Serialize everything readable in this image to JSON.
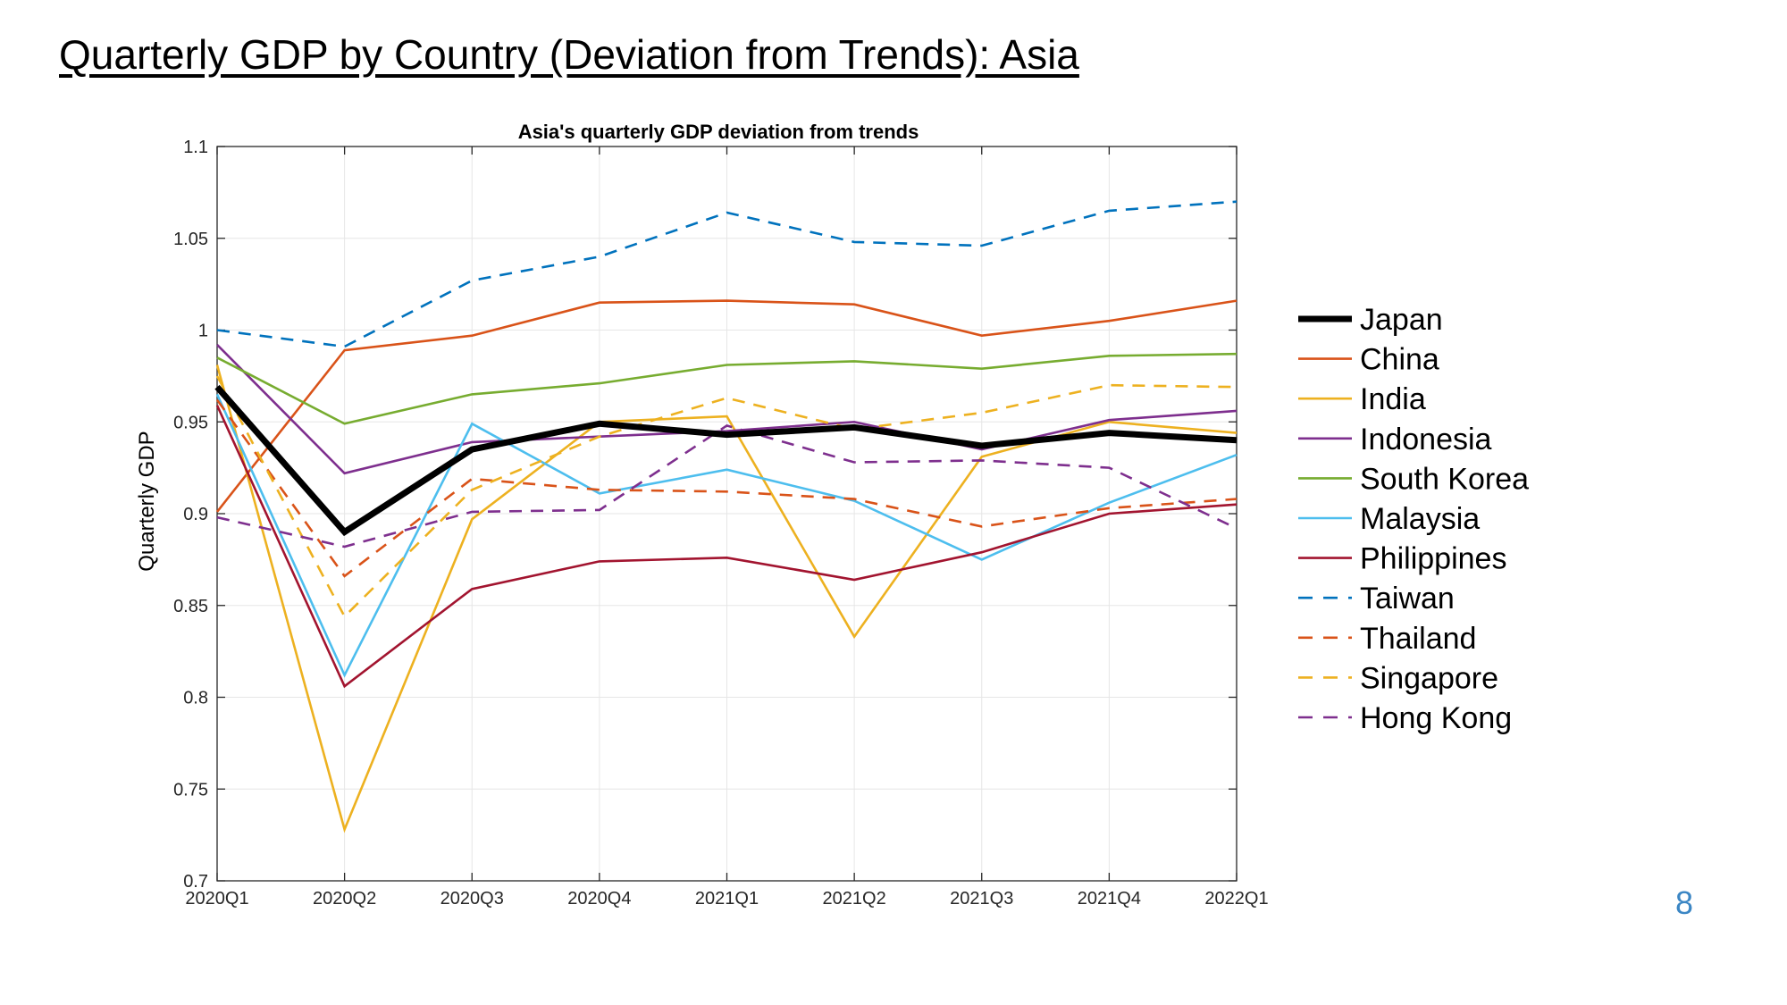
{
  "slide": {
    "title": "Quarterly GDP by Country (Deviation from Trends): Asia",
    "page_number": "8"
  },
  "chart_data": {
    "type": "line",
    "title": "Asia's quarterly GDP deviation from trends",
    "xlabel": "",
    "ylabel": "Quarterly GDP",
    "categories": [
      "2020Q1",
      "2020Q2",
      "2020Q3",
      "2020Q4",
      "2021Q1",
      "2021Q2",
      "2021Q3",
      "2021Q4",
      "2022Q1"
    ],
    "ylim": [
      0.7,
      1.1
    ],
    "yticks": [
      0.7,
      0.75,
      0.8,
      0.85,
      0.9,
      0.95,
      1,
      1.05,
      1.1
    ],
    "ytick_labels": [
      "0.7",
      "0.75",
      "0.8",
      "0.85",
      "0.9",
      "0.95",
      "1",
      "1.05",
      "1.1"
    ],
    "grid": true,
    "legend_position": "right",
    "series": [
      {
        "name": "Japan",
        "color": "#000000",
        "style": "solid-thick",
        "values": [
          0.969,
          0.89,
          0.935,
          0.949,
          0.943,
          0.947,
          0.937,
          0.944,
          0.94
        ]
      },
      {
        "name": "China",
        "color": "#d95319",
        "style": "solid",
        "values": [
          0.901,
          0.989,
          0.997,
          1.015,
          1.016,
          1.014,
          0.997,
          1.005,
          1.016
        ]
      },
      {
        "name": "India",
        "color": "#edb120",
        "style": "solid",
        "values": [
          0.981,
          0.728,
          0.897,
          0.95,
          0.953,
          0.833,
          0.931,
          0.95,
          0.944
        ]
      },
      {
        "name": "Indonesia",
        "color": "#7e2f8e",
        "style": "solid",
        "values": [
          0.992,
          0.922,
          0.939,
          0.942,
          0.945,
          0.95,
          0.935,
          0.951,
          0.956
        ]
      },
      {
        "name": "South Korea",
        "color": "#77ac30",
        "style": "solid",
        "values": [
          0.985,
          0.949,
          0.965,
          0.971,
          0.981,
          0.983,
          0.979,
          0.986,
          0.987
        ]
      },
      {
        "name": "Malaysia",
        "color": "#4dbeee",
        "style": "solid",
        "values": [
          0.965,
          0.812,
          0.949,
          0.911,
          0.924,
          0.907,
          0.875,
          0.906,
          0.932
        ]
      },
      {
        "name": "Philippines",
        "color": "#a2142f",
        "style": "solid",
        "values": [
          0.959,
          0.806,
          0.859,
          0.874,
          0.876,
          0.864,
          0.879,
          0.9,
          0.905
        ]
      },
      {
        "name": "Taiwan",
        "color": "#0072bd",
        "style": "dashed",
        "values": [
          1.0,
          0.991,
          1.027,
          1.04,
          1.064,
          1.048,
          1.046,
          1.065,
          1.07
        ]
      },
      {
        "name": "Thailand",
        "color": "#d95319",
        "style": "dashed",
        "values": [
          0.962,
          0.866,
          0.919,
          0.913,
          0.912,
          0.908,
          0.893,
          0.903,
          0.908
        ]
      },
      {
        "name": "Singapore",
        "color": "#edb120",
        "style": "dashed",
        "values": [
          0.975,
          0.844,
          0.913,
          0.942,
          0.963,
          0.946,
          0.955,
          0.97,
          0.969
        ]
      },
      {
        "name": "Hong Kong",
        "color": "#7e2f8e",
        "style": "dashed",
        "values": [
          0.898,
          0.882,
          0.901,
          0.902,
          0.948,
          0.928,
          0.929,
          0.925,
          0.892
        ]
      }
    ]
  }
}
